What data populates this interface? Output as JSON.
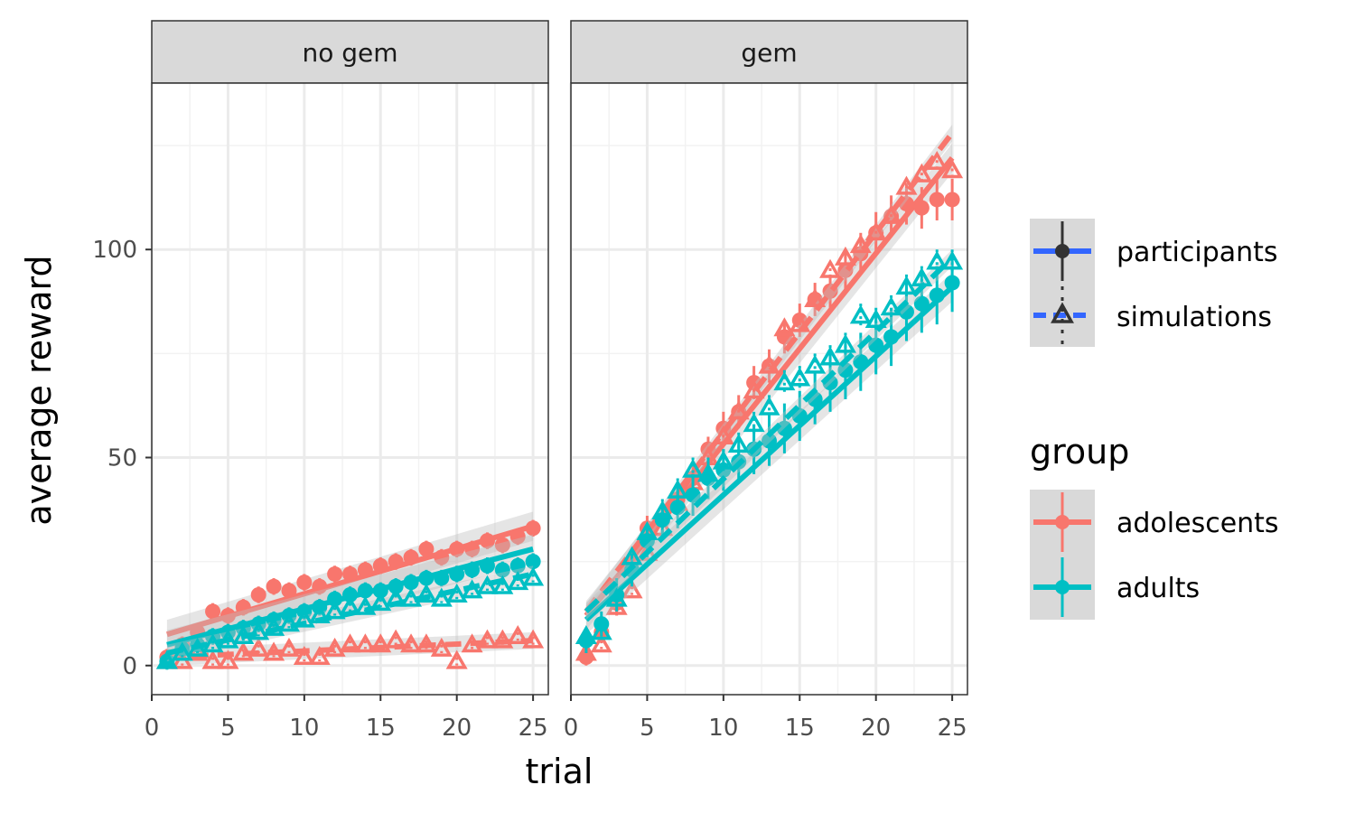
{
  "chart_data": {
    "type": "scatter",
    "xlabel": "trial",
    "ylabel": "average reward",
    "xlim": [
      0,
      26
    ],
    "ylim": [
      -7,
      140
    ],
    "x_ticks": [
      0,
      5,
      10,
      15,
      20,
      25
    ],
    "y_ticks": [
      0,
      50,
      100
    ],
    "x_tick_labels": [
      "0",
      "5",
      "10",
      "15",
      "20",
      "25"
    ],
    "y_tick_labels": [
      "0",
      "50",
      "100"
    ],
    "grid": true,
    "legend_position": "right",
    "colors": {
      "adolescents": "#F8766D",
      "adults": "#00BFC4",
      "source_line": "#3366FF"
    },
    "panels": [
      {
        "label": "no gem",
        "series": [
          {
            "group": "adolescents",
            "source": "participants",
            "x": [
              1,
              2,
              3,
              4,
              5,
              6,
              7,
              8,
              9,
              10,
              11,
              12,
              13,
              14,
              15,
              16,
              17,
              18,
              19,
              20,
              21,
              22,
              23,
              24,
              25
            ],
            "y": [
              2,
              5,
              8,
              13,
              12,
              14,
              17,
              19,
              18,
              20,
              19,
              22,
              22,
              23,
              24,
              25,
              26,
              28,
              26,
              28,
              28,
              30,
              29,
              31,
              33
            ],
            "err": [
              2,
              2,
              2,
              2,
              2,
              2,
              2,
              2,
              2,
              2,
              2,
              2,
              2,
              2,
              2,
              2,
              2,
              2,
              2,
              2,
              2,
              2,
              2,
              2,
              2
            ],
            "fit": [
              7.5,
              33.5
            ]
          },
          {
            "group": "adolescents",
            "source": "simulations",
            "x": [
              1,
              2,
              3,
              4,
              5,
              6,
              7,
              8,
              9,
              10,
              11,
              12,
              13,
              14,
              15,
              16,
              17,
              18,
              19,
              20,
              21,
              22,
              23,
              24,
              25
            ],
            "y": [
              1,
              1,
              3,
              1,
              1,
              3,
              4,
              3,
              4,
              2,
              2,
              4,
              5,
              5,
              5,
              6,
              5,
              5,
              4,
              1,
              5,
              6,
              6,
              7,
              6
            ],
            "err": [
              1,
              1,
              1,
              1,
              1,
              1,
              1,
              1,
              1,
              1,
              1,
              1,
              1,
              1,
              1,
              1,
              1,
              1,
              1,
              1,
              1,
              1,
              1,
              1,
              1
            ],
            "fit": [
              2,
              6
            ]
          },
          {
            "group": "adults",
            "source": "participants",
            "x": [
              1,
              2,
              3,
              4,
              5,
              6,
              7,
              8,
              9,
              10,
              11,
              12,
              13,
              14,
              15,
              16,
              17,
              18,
              19,
              20,
              21,
              22,
              23,
              24,
              25
            ],
            "y": [
              1,
              4,
              5,
              7,
              8,
              9,
              10,
              11,
              12,
              13,
              14,
              16,
              17,
              18,
              18,
              19,
              20,
              21,
              21,
              22,
              23,
              24,
              23,
              24,
              25
            ],
            "err": [
              2,
              2,
              2,
              2,
              2,
              2,
              2,
              2,
              2,
              2,
              2,
              2,
              2,
              2,
              2,
              2,
              2,
              2,
              2,
              2,
              2,
              2,
              2,
              2,
              2
            ],
            "fit": [
              5,
              28
            ]
          },
          {
            "group": "adults",
            "source": "simulations",
            "x": [
              1,
              2,
              3,
              4,
              5,
              6,
              7,
              8,
              9,
              10,
              11,
              12,
              13,
              14,
              15,
              16,
              17,
              18,
              19,
              20,
              21,
              22,
              23,
              24,
              25
            ],
            "y": [
              1,
              3,
              4,
              5,
              6,
              7,
              8,
              9,
              10,
              11,
              12,
              13,
              14,
              14,
              15,
              16,
              16,
              17,
              16,
              17,
              18,
              19,
              19,
              20,
              21
            ],
            "err": [
              1,
              1,
              1,
              1,
              1,
              1,
              1,
              1,
              1,
              1,
              1,
              1,
              1,
              1,
              1,
              1,
              1,
              1,
              1,
              1,
              1,
              1,
              1,
              1,
              1
            ],
            "fit": [
              3,
              22
            ]
          }
        ]
      },
      {
        "label": "gem",
        "series": [
          {
            "group": "adolescents",
            "source": "participants",
            "x": [
              1,
              2,
              3,
              4,
              5,
              6,
              7,
              8,
              9,
              10,
              11,
              12,
              13,
              14,
              15,
              16,
              17,
              18,
              19,
              20,
              21,
              22,
              23,
              24,
              25
            ],
            "y": [
              2,
              8,
              15,
              25,
              33,
              35,
              40,
              45,
              52,
              57,
              61,
              68,
              72,
              79,
              83,
              88,
              90,
              95,
              99,
              104,
              108,
              111,
              110,
              112,
              112
            ],
            "err": [
              2,
              2,
              3,
              3,
              3,
              3,
              3,
              3,
              3,
              4,
              4,
              4,
              4,
              4,
              4,
              4,
              4,
              5,
              5,
              5,
              5,
              5,
              5,
              5,
              5
            ],
            "fit": [
              12,
              122
            ]
          },
          {
            "group": "adolescents",
            "source": "simulations",
            "x": [
              1,
              2,
              3,
              4,
              5,
              6,
              7,
              8,
              9,
              10,
              11,
              12,
              13,
              14,
              15,
              16,
              17,
              18,
              19,
              20,
              21,
              22,
              23,
              24,
              25
            ],
            "y": [
              3,
              5,
              14,
              18,
              27,
              33,
              39,
              44,
              50,
              55,
              61,
              66,
              72,
              81,
              82,
              88,
              95,
              98,
              101,
              104,
              108,
              115,
              118,
              121,
              119
            ],
            "err": [
              1,
              1,
              1,
              1,
              1,
              1,
              2,
              2,
              2,
              2,
              2,
              2,
              2,
              2,
              2,
              2,
              2,
              2,
              2,
              2,
              2,
              2,
              2,
              2,
              2
            ],
            "fit": [
              13,
              128
            ]
          },
          {
            "group": "adults",
            "source": "participants",
            "x": [
              1,
              2,
              3,
              4,
              5,
              6,
              7,
              8,
              9,
              10,
              11,
              12,
              13,
              14,
              15,
              16,
              17,
              18,
              19,
              20,
              21,
              22,
              23,
              24,
              25
            ],
            "y": [
              6,
              10,
              17,
              23,
              30,
              35,
              38,
              41,
              45,
              47,
              49,
              52,
              54,
              57,
              60,
              64,
              68,
              71,
              73,
              77,
              79,
              85,
              87,
              89,
              92
            ],
            "err": [
              3,
              3,
              4,
              4,
              4,
              4,
              5,
              5,
              5,
              5,
              5,
              6,
              6,
              6,
              6,
              6,
              7,
              7,
              7,
              7,
              7,
              7,
              7,
              7,
              7
            ],
            "fit": [
              11,
              91
            ]
          },
          {
            "group": "adults",
            "source": "simulations",
            "x": [
              1,
              2,
              3,
              4,
              5,
              6,
              7,
              8,
              9,
              10,
              11,
              12,
              13,
              14,
              15,
              16,
              17,
              18,
              19,
              20,
              21,
              22,
              23,
              24,
              25
            ],
            "y": [
              7,
              8,
              16,
              26,
              32,
              37,
              42,
              47,
              46,
              49,
              53,
              58,
              62,
              68,
              69,
              72,
              74,
              77,
              84,
              83,
              86,
              91,
              93,
              97,
              97
            ],
            "err": [
              2,
              2,
              2,
              2,
              2,
              3,
              3,
              3,
              3,
              3,
              3,
              3,
              3,
              3,
              3,
              3,
              3,
              3,
              3,
              3,
              3,
              3,
              3,
              3,
              3
            ],
            "fit": [
              13,
              98
            ]
          }
        ]
      }
    ],
    "legend": {
      "source_entries": [
        "participants",
        "simulations"
      ],
      "group_title": "group",
      "group_entries": [
        "adolescents",
        "adults"
      ]
    }
  }
}
